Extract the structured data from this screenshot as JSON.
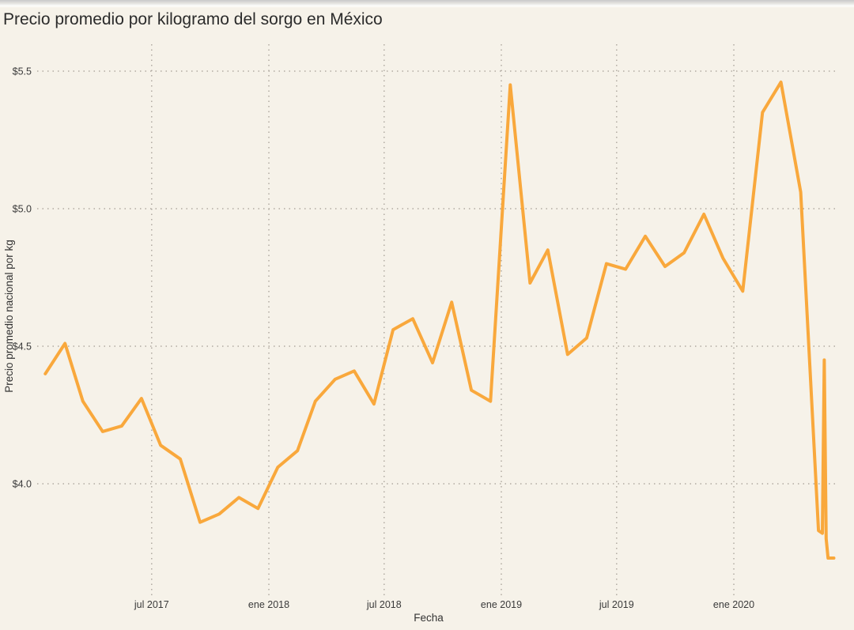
{
  "page": {
    "background_color": "#f6f2e9"
  },
  "chart_data": {
    "type": "line",
    "title": "Precio promedio por kilogramo del sorgo en México",
    "xlabel": "Fecha",
    "ylabel": "Precio promedio nacional por kg",
    "legend": "none",
    "grid": "dotted",
    "line_color": "#f9a83c",
    "grid_color": "#a9a39a",
    "background_color": "#f6f2e9",
    "title_color": "#2b2b2b",
    "tick_color": "#3a3a3a",
    "y_ticks": [
      {
        "label": "$5.5",
        "value": 5.5
      },
      {
        "label": "$5.0",
        "value": 5.0
      },
      {
        "label": "$4.5",
        "value": 4.5
      },
      {
        "label": "$4.0",
        "value": 4.0
      }
    ],
    "x_ticks": [
      {
        "label": "jul 2017",
        "date": "2017-07-01"
      },
      {
        "label": "ene 2018",
        "date": "2018-01-01"
      },
      {
        "label": "jul 2018",
        "date": "2018-07-01"
      },
      {
        "label": "ene 2019",
        "date": "2019-01-01"
      },
      {
        "label": "jul 2019",
        "date": "2019-07-01"
      },
      {
        "label": "ene 2020",
        "date": "2020-01-01"
      }
    ],
    "x_axis_range": [
      "2017-01-03",
      "2020-06-11"
    ],
    "y_axis_range": [
      3.6,
      5.57
    ],
    "series": [
      {
        "name": "Precio promedio nacional por kg",
        "points": [
          {
            "date": "2017-01-15",
            "value": 4.4
          },
          {
            "date": "2017-02-15",
            "value": 4.51
          },
          {
            "date": "2017-03-15",
            "value": 4.3
          },
          {
            "date": "2017-04-15",
            "value": 4.19
          },
          {
            "date": "2017-05-15",
            "value": 4.21
          },
          {
            "date": "2017-06-15",
            "value": 4.31
          },
          {
            "date": "2017-07-15",
            "value": 4.14
          },
          {
            "date": "2017-08-15",
            "value": 4.09
          },
          {
            "date": "2017-09-15",
            "value": 3.86
          },
          {
            "date": "2017-10-15",
            "value": 3.89
          },
          {
            "date": "2017-11-15",
            "value": 3.95
          },
          {
            "date": "2017-12-15",
            "value": 3.91
          },
          {
            "date": "2018-01-15",
            "value": 4.06
          },
          {
            "date": "2018-02-15",
            "value": 4.12
          },
          {
            "date": "2018-03-15",
            "value": 4.3
          },
          {
            "date": "2018-04-15",
            "value": 4.38
          },
          {
            "date": "2018-05-15",
            "value": 4.41
          },
          {
            "date": "2018-06-15",
            "value": 4.29
          },
          {
            "date": "2018-07-15",
            "value": 4.56
          },
          {
            "date": "2018-08-15",
            "value": 4.6
          },
          {
            "date": "2018-09-15",
            "value": 4.44
          },
          {
            "date": "2018-10-15",
            "value": 4.66
          },
          {
            "date": "2018-11-15",
            "value": 4.34
          },
          {
            "date": "2018-12-15",
            "value": 4.3
          },
          {
            "date": "2019-01-15",
            "value": 5.45
          },
          {
            "date": "2019-02-15",
            "value": 4.73
          },
          {
            "date": "2019-03-15",
            "value": 4.85
          },
          {
            "date": "2019-04-15",
            "value": 4.47
          },
          {
            "date": "2019-05-15",
            "value": 4.53
          },
          {
            "date": "2019-06-15",
            "value": 4.8
          },
          {
            "date": "2019-07-15",
            "value": 4.78
          },
          {
            "date": "2019-08-15",
            "value": 4.9
          },
          {
            "date": "2019-09-15",
            "value": 4.79
          },
          {
            "date": "2019-10-15",
            "value": 4.84
          },
          {
            "date": "2019-11-15",
            "value": 4.98
          },
          {
            "date": "2019-12-15",
            "value": 4.82
          },
          {
            "date": "2020-01-15",
            "value": 4.7
          },
          {
            "date": "2020-02-15",
            "value": 5.35
          },
          {
            "date": "2020-03-15",
            "value": 5.46
          },
          {
            "date": "2020-04-15",
            "value": 5.06
          },
          {
            "date": "2020-05-13",
            "value": 3.83
          },
          {
            "date": "2020-05-19",
            "value": 3.82
          },
          {
            "date": "2020-05-22",
            "value": 4.45
          },
          {
            "date": "2020-05-25",
            "value": 3.8
          },
          {
            "date": "2020-05-28",
            "value": 3.73
          },
          {
            "date": "2020-06-06",
            "value": 3.73
          }
        ]
      }
    ]
  }
}
